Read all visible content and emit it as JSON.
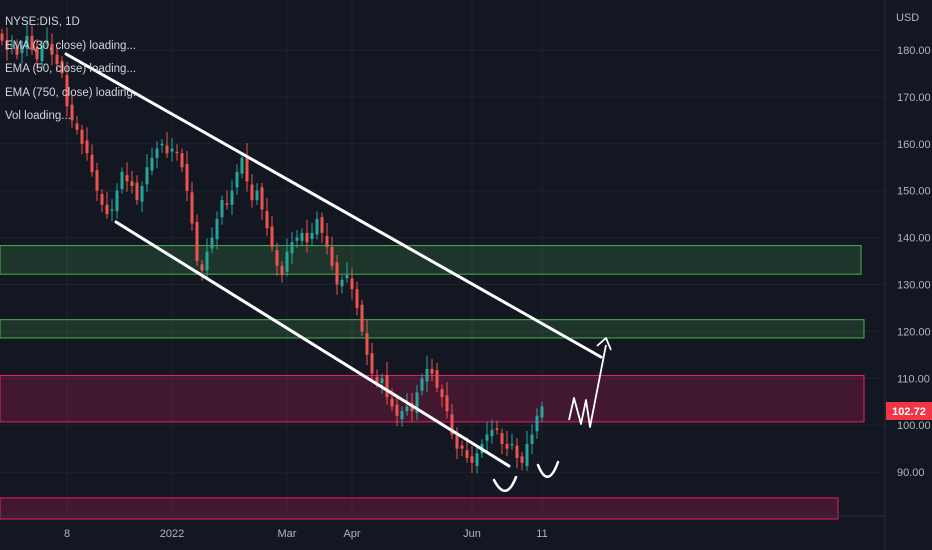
{
  "symbol": "NYSE:DIS, 1D",
  "indicators": [
    "EMA (30, close) loading...",
    "EMA (50, close) loading...",
    "EMA (750, close) loading...",
    "Vol loading..."
  ],
  "currency": "USD",
  "last_price": "102.72",
  "colors": {
    "background": "#131722",
    "up": "#26a69a",
    "down": "#ef5350",
    "support_zone": "#4caf50",
    "resistance_zone": "#e91e63",
    "drawing": "#ffffff",
    "price_tag": "#f23645"
  },
  "chart_data": {
    "type": "candlestick",
    "title": "NYSE:DIS, 1D",
    "ylabel": "USD",
    "ylim": [
      82,
      186
    ],
    "yticks": [
      {
        "value": 180,
        "label": "180.00"
      },
      {
        "value": 170,
        "label": "170.00"
      },
      {
        "value": 160,
        "label": "160.00"
      },
      {
        "value": 150,
        "label": "150.00"
      },
      {
        "value": 140,
        "label": "140.00"
      },
      {
        "value": 130,
        "label": "130.00"
      },
      {
        "value": 120,
        "label": "120.00"
      },
      {
        "value": 110,
        "label": "110.00"
      },
      {
        "value": 100,
        "label": "100.00"
      },
      {
        "value": 90,
        "label": "90.00"
      }
    ],
    "xticks": [
      {
        "label": "8",
        "index": 13
      },
      {
        "label": "2022",
        "index": 34
      },
      {
        "label": "Mar",
        "index": 57
      },
      {
        "label": "Apr",
        "index": 70
      },
      {
        "label": "Jun",
        "index": 94
      },
      {
        "label": "11",
        "index": 108
      }
    ],
    "zones": [
      {
        "type": "support",
        "low": 132.2,
        "high": 138.3
      },
      {
        "type": "support",
        "low": 118.6,
        "high": 122.5
      },
      {
        "type": "resistance",
        "low": 100.7,
        "high": 110.6
      },
      {
        "type": "resistance",
        "low": 80.0,
        "high": 84.5
      }
    ],
    "close_series": [
      182,
      180,
      181,
      179,
      181,
      183,
      180,
      178,
      181,
      182,
      179,
      177,
      175,
      168,
      165,
      163,
      160,
      158,
      154,
      150,
      147,
      145,
      146,
      150,
      154,
      152,
      151,
      148,
      151,
      155,
      157,
      159,
      160,
      158,
      159,
      158,
      155,
      150,
      143,
      135,
      133,
      137,
      140,
      144,
      148,
      147,
      150,
      154,
      157,
      152,
      148,
      150,
      146,
      142,
      138,
      134,
      132,
      137,
      139,
      140,
      141,
      139,
      141,
      144,
      141,
      138,
      134,
      130,
      131,
      132,
      129,
      125,
      120,
      115,
      111,
      109,
      110,
      106,
      104,
      102,
      103,
      104,
      103,
      107,
      110,
      112,
      111,
      108,
      106,
      103,
      98,
      95,
      95,
      93,
      92,
      94,
      96,
      98,
      99,
      99,
      96,
      95,
      96,
      93,
      92,
      96,
      98,
      102,
      104
    ]
  }
}
